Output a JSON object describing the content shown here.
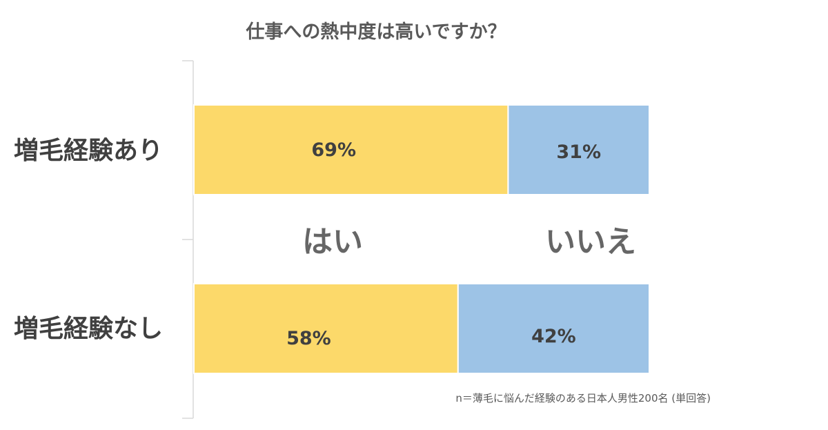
{
  "chart_data": {
    "type": "bar",
    "orientation": "horizontal",
    "stacked": true,
    "percent_stacked": true,
    "title": "仕事への熱中度は高いですか？",
    "categories": [
      "増毛経験あり",
      "増毛経験なし"
    ],
    "series": [
      {
        "name": "はい",
        "values": [
          69,
          58
        ],
        "labels": [
          "69%",
          "58%"
        ],
        "color": "#FCD96A"
      },
      {
        "name": "いいえ",
        "values": [
          31,
          42
        ],
        "labels": [
          "31%",
          "42%"
        ],
        "color": "#9DC3E6"
      }
    ],
    "xlim": [
      0,
      100
    ],
    "unit": "%",
    "legend": "inline-between-bars",
    "grid": false,
    "note": "n＝薄毛に悩んだ経験のある日本人男性200名 (単回答)"
  }
}
